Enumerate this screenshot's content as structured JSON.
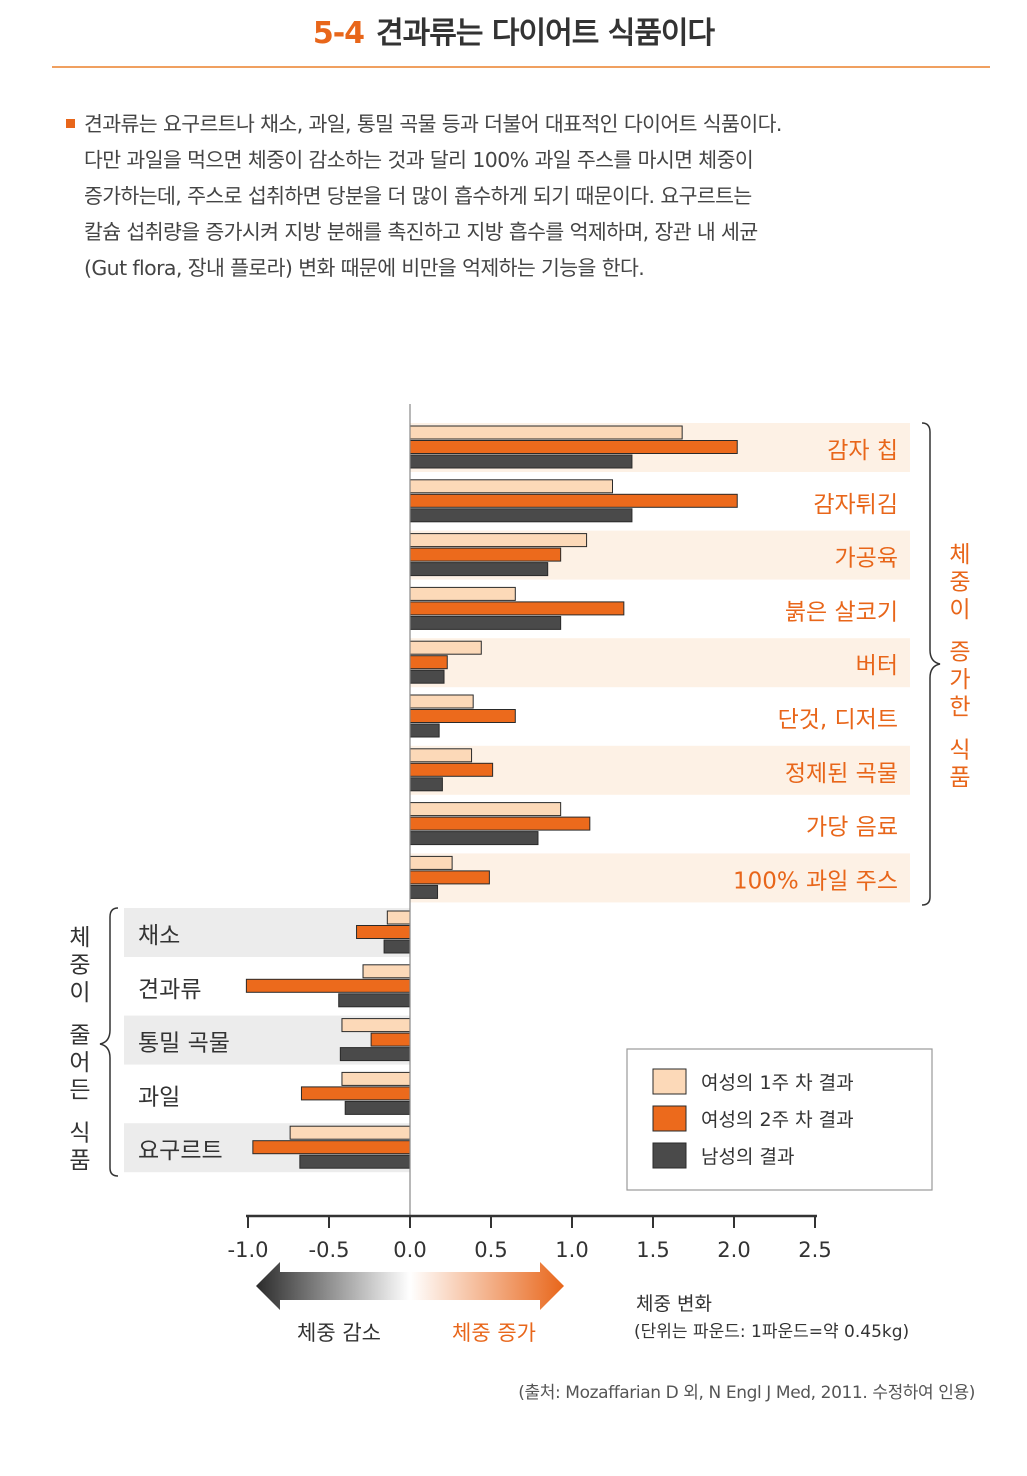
{
  "header": {
    "number": "5-4",
    "title": "견과류는 다이어트 식품이다"
  },
  "intro": {
    "lines": [
      "견과류는 요구르트나 채소, 과일, 통밀 곡물 등과 더불어 대표적인 다이어트 식품이다.",
      "다만 과일을 먹으면 체중이 감소하는 것과 달리 100% 과일 주스를 마시면 체중이",
      "증가하는데, 주스로 섭취하면 당분을 더 많이 흡수하게 되기 때문이다. 요구르트는",
      "칼슘 섭취량을 증가시켜 지방 분해를 촉진하고 지방 흡수를 억제하며, 장관 내 세균",
      "(Gut flora, 장내 플로라) 변화 때문에 비만을 억제하는 기능을 한다."
    ]
  },
  "chart_data": {
    "type": "bar",
    "orientation": "horizontal",
    "categories": [
      "감자 칩",
      "감자튀김",
      "가공육",
      "붉은 살코기",
      "버터",
      "단것, 디저트",
      "정제된 곡물",
      "가당 음료",
      "100% 과일 주스",
      "채소",
      "견과류",
      "통밀 곡물",
      "과일",
      "요구르트"
    ],
    "series": [
      {
        "name": "여성의 1주 차 결과",
        "color": "#fcd9b8",
        "values": [
          1.68,
          1.25,
          1.09,
          0.65,
          0.44,
          0.39,
          0.38,
          0.93,
          0.26,
          -0.14,
          -0.29,
          -0.42,
          -0.42,
          -0.74
        ]
      },
      {
        "name": "여성의 2주 차 결과",
        "color": "#ec6a1c",
        "values": [
          2.02,
          2.02,
          0.93,
          1.32,
          0.23,
          0.65,
          0.51,
          1.11,
          0.49,
          -0.33,
          -1.01,
          -0.24,
          -0.67,
          -0.97
        ]
      },
      {
        "name": "남성의 결과",
        "color": "#4a4a4a",
        "values": [
          1.37,
          1.37,
          0.85,
          0.93,
          0.21,
          0.18,
          0.2,
          0.79,
          0.17,
          -0.16,
          -0.44,
          -0.43,
          -0.4,
          -0.68
        ]
      }
    ],
    "xlim": [
      -1.0,
      2.5
    ],
    "xticks": [
      "-1.0",
      "-0.5",
      "0.0",
      "0.5",
      "1.0",
      "1.5",
      "2.0",
      "2.5"
    ],
    "xlabel": "체중 변화",
    "xlabel_unit": "(단위는 파운드: 1파운드=약 0.45kg)",
    "group_increase": "체중이 증가한 식품",
    "group_decrease": "체중이 줄어든 식품",
    "arrow_decrease": "체중 감소",
    "arrow_increase": "체중 증가",
    "legend_position": "bottom-right"
  },
  "colors": {
    "accent": "#e8661a",
    "increase_band": "#fdf1e5",
    "decrease_band": "#ececec"
  },
  "footer": {
    "citation": "(출처: Mozaffarian D 외, N Engl J Med, 2011. 수정하여 인용)"
  }
}
